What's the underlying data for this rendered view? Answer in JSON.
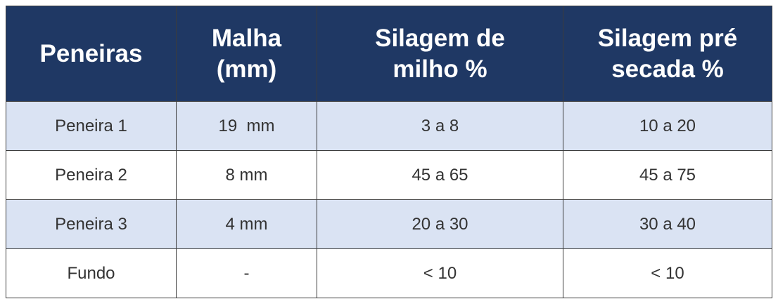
{
  "table": {
    "header": [
      [
        "Peneiras"
      ],
      [
        "Malha",
        "(mm)"
      ],
      [
        "Silagem de",
        "milho %"
      ],
      [
        "Silagem pré",
        "secada %"
      ]
    ],
    "rows": [
      [
        "Peneira 1",
        "19  mm",
        "3 a 8",
        "10 a 20"
      ],
      [
        "Peneira 2",
        "8 mm",
        "45 a 65",
        "45 a 75"
      ],
      [
        "Peneira 3",
        "4 mm",
        "20 a 30",
        "30 a 40"
      ],
      [
        "Fundo",
        "-",
        "< 10",
        "< 10"
      ]
    ]
  }
}
